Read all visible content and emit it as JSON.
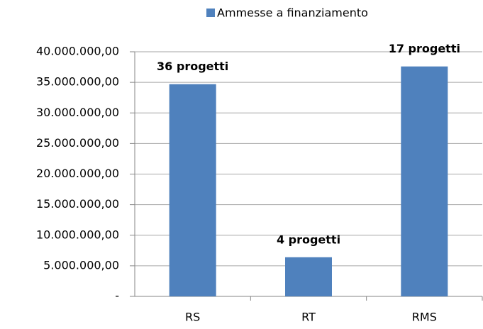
{
  "chart_data": {
    "type": "bar",
    "categories": [
      "RS",
      "RT",
      "RMS"
    ],
    "series": [
      {
        "name": "Ammesse a finanziamento",
        "color": "#4f81bd",
        "values": [
          34700000,
          6400000,
          37600000
        ]
      }
    ],
    "bar_labels": [
      "36 progetti",
      "4 progetti",
      "17 progetti"
    ],
    "ylim": [
      0,
      40000000
    ],
    "yticks": [
      {
        "value": 0,
        "label": "-"
      },
      {
        "value": 5000000,
        "label": "5.000.000,00"
      },
      {
        "value": 10000000,
        "label": "10.000.000,00"
      },
      {
        "value": 15000000,
        "label": "15.000.000,00"
      },
      {
        "value": 20000000,
        "label": "20.000.000,00"
      },
      {
        "value": 25000000,
        "label": "25.000.000,00"
      },
      {
        "value": 30000000,
        "label": "30.000.000,00"
      },
      {
        "value": 35000000,
        "label": "35.000.000,00"
      },
      {
        "value": 40000000,
        "label": "40.000.000,00"
      }
    ],
    "grid": true,
    "legend": "top"
  }
}
